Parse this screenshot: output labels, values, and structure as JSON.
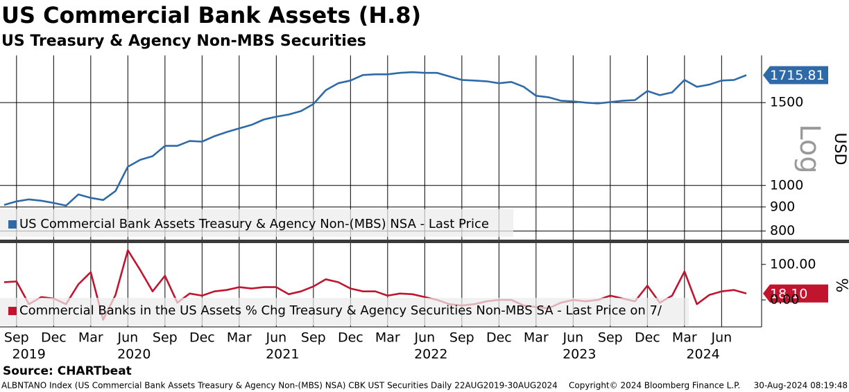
{
  "chart_data": [
    {
      "type": "line",
      "title": "US Commercial Bank Assets (H.8)",
      "subtitle": "US Treasury & Agency Non-MBS Securities",
      "x": [
        "2019-08",
        "2019-09",
        "2019-10",
        "2019-11",
        "2019-12",
        "2020-01",
        "2020-02",
        "2020-03",
        "2020-04",
        "2020-05",
        "2020-06",
        "2020-07",
        "2020-08",
        "2020-09",
        "2020-10",
        "2020-11",
        "2020-12",
        "2021-01",
        "2021-02",
        "2021-03",
        "2021-04",
        "2021-05",
        "2021-06",
        "2021-07",
        "2021-08",
        "2021-09",
        "2021-10",
        "2021-11",
        "2021-12",
        "2022-01",
        "2022-02",
        "2022-03",
        "2022-04",
        "2022-05",
        "2022-06",
        "2022-07",
        "2022-08",
        "2022-09",
        "2022-10",
        "2022-11",
        "2022-12",
        "2023-01",
        "2023-02",
        "2023-03",
        "2023-04",
        "2023-05",
        "2023-06",
        "2023-07",
        "2023-08",
        "2023-09",
        "2023-10",
        "2023-11",
        "2023-12",
        "2024-01",
        "2024-02",
        "2024-03",
        "2024-04",
        "2024-05",
        "2024-06",
        "2024-07",
        "2024-08"
      ],
      "series": [
        {
          "name": "US Commercial Bank Assets Treasury & Agency Non-(MBS) NSA - Last Price",
          "color": "#2e6aa8",
          "values": [
            909,
            925,
            934,
            928,
            918,
            906,
            957,
            941,
            931,
            973,
            1096,
            1134,
            1154,
            1214,
            1214,
            1243,
            1239,
            1273,
            1299,
            1322,
            1345,
            1381,
            1400,
            1415,
            1439,
            1489,
            1594,
            1649,
            1671,
            1717,
            1723,
            1723,
            1735,
            1741,
            1735,
            1735,
            1705,
            1676,
            1671,
            1665,
            1649,
            1660,
            1621,
            1551,
            1540,
            1514,
            1509,
            1500,
            1494,
            1504,
            1514,
            1519,
            1588,
            1556,
            1577,
            1676,
            1621,
            1638,
            1671,
            1676,
            1715.81
          ],
          "last_price": {
            "value": 1715.81,
            "label": "1715.81"
          }
        }
      ],
      "log_scale": true,
      "ylabel": "USD",
      "scale_note": "Log",
      "ylim": [
        767,
        1890
      ],
      "yticks": [
        800,
        900,
        1000,
        1500
      ],
      "grid": true
    },
    {
      "type": "line",
      "x": [
        "2019-08",
        "2019-09",
        "2019-10",
        "2019-11",
        "2019-12",
        "2020-01",
        "2020-02",
        "2020-03",
        "2020-04",
        "2020-05",
        "2020-06",
        "2020-07",
        "2020-08",
        "2020-09",
        "2020-10",
        "2020-11",
        "2020-12",
        "2021-01",
        "2021-02",
        "2021-03",
        "2021-04",
        "2021-05",
        "2021-06",
        "2021-07",
        "2021-08",
        "2021-09",
        "2021-10",
        "2021-11",
        "2021-12",
        "2022-01",
        "2022-02",
        "2022-03",
        "2022-04",
        "2022-05",
        "2022-06",
        "2022-07",
        "2022-08",
        "2022-09",
        "2022-10",
        "2022-11",
        "2022-12",
        "2023-01",
        "2023-02",
        "2023-03",
        "2023-04",
        "2023-05",
        "2023-06",
        "2023-07",
        "2023-08",
        "2023-09",
        "2023-10",
        "2023-11",
        "2023-12",
        "2024-01",
        "2024-02",
        "2024-03",
        "2024-04",
        "2024-05",
        "2024-06",
        "2024-07",
        "2024-08"
      ],
      "series": [
        {
          "name": "Commercial Banks in the US Assets % Chg Treasury & Agency Securities Non-MBS SA - Last Price on 7/",
          "color": "#c0142f",
          "values": [
            50,
            52,
            -12,
            8,
            4,
            -12,
            44,
            78,
            -56,
            14,
            140,
            84,
            24,
            68,
            -8,
            18,
            12,
            24,
            28,
            36,
            32,
            36,
            36,
            16,
            24,
            38,
            58,
            50,
            32,
            24,
            24,
            12,
            18,
            16,
            8,
            0,
            -12,
            -16,
            -12,
            -4,
            0,
            0,
            -16,
            -20,
            -24,
            -8,
            0,
            -4,
            0,
            12,
            4,
            -4,
            40,
            -8,
            12,
            80,
            -12,
            14,
            24,
            28,
            18.1
          ],
          "last_price": {
            "value": 18.1,
            "label": "18.10"
          }
        }
      ],
      "log_scale": false,
      "ylabel": "%",
      "ylim": [
        -76,
        160
      ],
      "yticks": [
        {
          "value": 0,
          "label": "0.00"
        },
        {
          "value": 100,
          "label": "100.00"
        }
      ],
      "grid": false,
      "xticks": [
        {
          "value": "2019-09",
          "label": "Sep"
        },
        {
          "value": "2019-12",
          "label": "Dec"
        },
        {
          "value": "2020-03",
          "label": "Mar"
        },
        {
          "value": "2020-06",
          "label": "Jun"
        },
        {
          "value": "2020-09",
          "label": "Sep"
        },
        {
          "value": "2020-12",
          "label": "Dec"
        },
        {
          "value": "2021-03",
          "label": "Mar"
        },
        {
          "value": "2021-06",
          "label": "Jun"
        },
        {
          "value": "2021-09",
          "label": "Sep"
        },
        {
          "value": "2021-12",
          "label": "Dec"
        },
        {
          "value": "2022-03",
          "label": "Mar"
        },
        {
          "value": "2022-06",
          "label": "Jun"
        },
        {
          "value": "2022-09",
          "label": "Sep"
        },
        {
          "value": "2022-12",
          "label": "Dec"
        },
        {
          "value": "2023-03",
          "label": "Mar"
        },
        {
          "value": "2023-06",
          "label": "Jun"
        },
        {
          "value": "2023-09",
          "label": "Sep"
        },
        {
          "value": "2023-12",
          "label": "Dec"
        },
        {
          "value": "2024-03",
          "label": "Mar"
        },
        {
          "value": "2024-06",
          "label": "Jun"
        }
      ],
      "xyears": [
        "2019",
        "2020",
        "2021",
        "2022",
        "2023",
        "2024"
      ]
    }
  ],
  "footer": {
    "source": "Source: CHARTbeat",
    "description": "ALBNTANO Index (US Commercial Bank Assets Treasury & Agency Non-(MBS) NSA) CBK UST Securities  Daily 22AUG2019-30AUG2024",
    "copyright": "Copyright© 2024 Bloomberg Finance L.P.",
    "timestamp": "30-Aug-2024 08:19:48"
  }
}
